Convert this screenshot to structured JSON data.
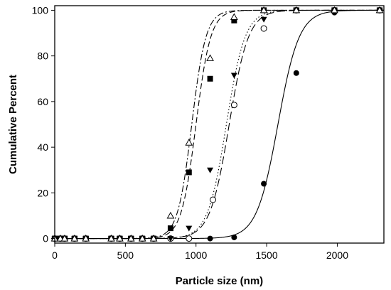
{
  "chart_data": {
    "type": "scatter",
    "xlabel": "Particle size (nm)",
    "ylabel": "Cumulative Percent",
    "xlim": [
      0,
      2330
    ],
    "ylim": [
      -2,
      102
    ],
    "x_ticks": [
      0,
      500,
      1000,
      1500,
      2000
    ],
    "y_ticks": [
      0,
      20,
      40,
      60,
      80,
      100
    ],
    "grid": false,
    "legend": "none",
    "series": [
      {
        "marker": "filled-circle",
        "line_style": "solid",
        "fit": {
          "x0": 1580,
          "w": 75
        },
        "x": [
          0,
          40,
          70,
          140,
          220,
          400,
          460,
          540,
          620,
          700,
          820,
          950,
          1100,
          1270,
          1480,
          1710,
          1980,
          2300
        ],
        "y": [
          0,
          0,
          0,
          0,
          0,
          0,
          0,
          0,
          0,
          0,
          0,
          0,
          0,
          0.5,
          24,
          72.5,
          99,
          100
        ]
      },
      {
        "marker": "open-circle",
        "line_style": "dotted",
        "fit": {
          "x0": 1215,
          "w": 66
        },
        "x": [
          0,
          40,
          70,
          140,
          220,
          400,
          460,
          540,
          620,
          700,
          820,
          950,
          1120,
          1270,
          1480,
          1710,
          1980,
          2300
        ],
        "y": [
          0,
          0,
          0,
          0,
          0,
          0,
          0,
          0,
          0,
          0,
          0,
          0,
          17,
          58.5,
          92,
          100,
          100,
          100
        ]
      },
      {
        "marker": "filled-triangle-down",
        "line_style": "long-dash",
        "fit": {
          "x0": 1235,
          "w": 68
        },
        "x": [
          0,
          40,
          70,
          140,
          220,
          400,
          460,
          540,
          620,
          700,
          820,
          950,
          1100,
          1270,
          1480,
          1710,
          1980,
          2300
        ],
        "y": [
          0,
          0,
          0,
          0,
          0,
          0,
          0,
          0,
          0,
          0,
          0,
          4.5,
          30,
          71.5,
          96,
          100,
          100,
          100
        ]
      },
      {
        "marker": "filled-square",
        "line_style": "dash",
        "fit": {
          "x0": 1000,
          "w": 52
        },
        "x": [
          0,
          40,
          70,
          140,
          220,
          400,
          460,
          540,
          620,
          700,
          820,
          950,
          1100,
          1270,
          1480,
          1710,
          1980,
          2300
        ],
        "y": [
          0,
          0,
          0,
          0,
          0,
          0,
          0,
          0,
          0,
          0,
          4.5,
          29,
          70,
          95.5,
          100,
          100,
          100,
          100
        ]
      },
      {
        "marker": "open-triangle-up",
        "line_style": "dash-dot",
        "fit": {
          "x0": 970,
          "w": 50
        },
        "x": [
          0,
          40,
          70,
          140,
          220,
          400,
          460,
          540,
          620,
          700,
          820,
          950,
          1100,
          1270,
          1480,
          1710,
          1980,
          2300
        ],
        "y": [
          0,
          0,
          0,
          0,
          0,
          0,
          0,
          0,
          0,
          0,
          10,
          42,
          79,
          97,
          100,
          100,
          100,
          100
        ]
      }
    ]
  }
}
